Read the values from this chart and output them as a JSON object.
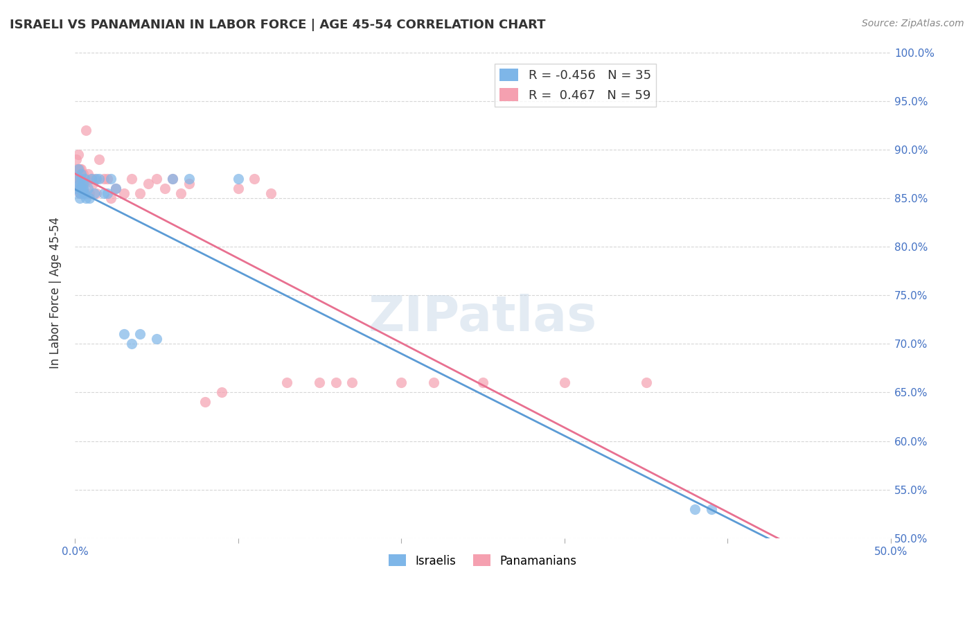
{
  "title": "ISRAELI VS PANAMANIAN IN LABOR FORCE | AGE 45-54 CORRELATION CHART",
  "source": "Source: ZipAtlas.com",
  "xlabel_bottom": "",
  "ylabel": "In Labor Force | Age 45-54",
  "xlim": [
    0.0,
    0.5
  ],
  "ylim": [
    0.5,
    1.005
  ],
  "xticks": [
    0.0,
    0.1,
    0.2,
    0.3,
    0.4,
    0.5
  ],
  "xticklabels": [
    "0.0%",
    "",
    "",
    "",
    "",
    "50.0%"
  ],
  "yticks": [
    0.5,
    0.55,
    0.6,
    0.65,
    0.7,
    0.75,
    0.8,
    0.85,
    0.9,
    0.95,
    1.0
  ],
  "yticklabels": [
    "",
    "55.0%",
    "",
    "65.0%",
    "",
    "75.0%",
    "",
    "85.0%",
    "",
    "95.0%",
    "100.0%"
  ],
  "legend_r_israeli": "-0.456",
  "legend_n_israeli": "35",
  "legend_r_panamanian": "0.467",
  "legend_n_panamanian": "59",
  "color_israeli": "#7EB6E8",
  "color_panamanian": "#F5A0B0",
  "color_line_israeli": "#5B9BD5",
  "color_line_panamanian": "#E87090",
  "watermark": "ZIPatlas",
  "watermark_color": "#C8D8E8",
  "israeli_x": [
    0.001,
    0.002,
    0.002,
    0.003,
    0.003,
    0.003,
    0.003,
    0.004,
    0.004,
    0.004,
    0.005,
    0.005,
    0.005,
    0.006,
    0.006,
    0.007,
    0.008,
    0.009,
    0.01,
    0.012,
    0.013,
    0.015,
    0.018,
    0.02,
    0.022,
    0.025,
    0.03,
    0.035,
    0.04,
    0.05,
    0.06,
    0.07,
    0.1,
    0.38,
    0.39
  ],
  "israeli_y": [
    0.86,
    0.87,
    0.88,
    0.855,
    0.865,
    0.85,
    0.86,
    0.875,
    0.86,
    0.87,
    0.865,
    0.855,
    0.86,
    0.87,
    0.855,
    0.85,
    0.86,
    0.85,
    0.87,
    0.855,
    0.87,
    0.87,
    0.855,
    0.855,
    0.87,
    0.86,
    0.71,
    0.7,
    0.71,
    0.705,
    0.87,
    0.87,
    0.87,
    0.53,
    0.53
  ],
  "panamanian_x": [
    0.001,
    0.001,
    0.001,
    0.002,
    0.002,
    0.002,
    0.002,
    0.003,
    0.003,
    0.003,
    0.003,
    0.003,
    0.004,
    0.004,
    0.004,
    0.004,
    0.005,
    0.005,
    0.005,
    0.005,
    0.006,
    0.006,
    0.006,
    0.007,
    0.007,
    0.008,
    0.009,
    0.01,
    0.011,
    0.012,
    0.013,
    0.015,
    0.018,
    0.02,
    0.022,
    0.025,
    0.03,
    0.035,
    0.04,
    0.045,
    0.05,
    0.055,
    0.06,
    0.065,
    0.07,
    0.08,
    0.09,
    0.1,
    0.11,
    0.12,
    0.13,
    0.15,
    0.16,
    0.17,
    0.2,
    0.22,
    0.25,
    0.3,
    0.35
  ],
  "panamanian_y": [
    0.87,
    0.88,
    0.89,
    0.87,
    0.88,
    0.895,
    0.86,
    0.87,
    0.855,
    0.88,
    0.87,
    0.86,
    0.875,
    0.855,
    0.87,
    0.88,
    0.865,
    0.855,
    0.875,
    0.86,
    0.87,
    0.855,
    0.865,
    0.92,
    0.87,
    0.875,
    0.855,
    0.87,
    0.865,
    0.87,
    0.855,
    0.89,
    0.87,
    0.87,
    0.85,
    0.86,
    0.855,
    0.87,
    0.855,
    0.865,
    0.87,
    0.86,
    0.87,
    0.855,
    0.865,
    0.64,
    0.65,
    0.86,
    0.87,
    0.855,
    0.66,
    0.66,
    0.66,
    0.66,
    0.66,
    0.66,
    0.66,
    0.66,
    0.66
  ]
}
